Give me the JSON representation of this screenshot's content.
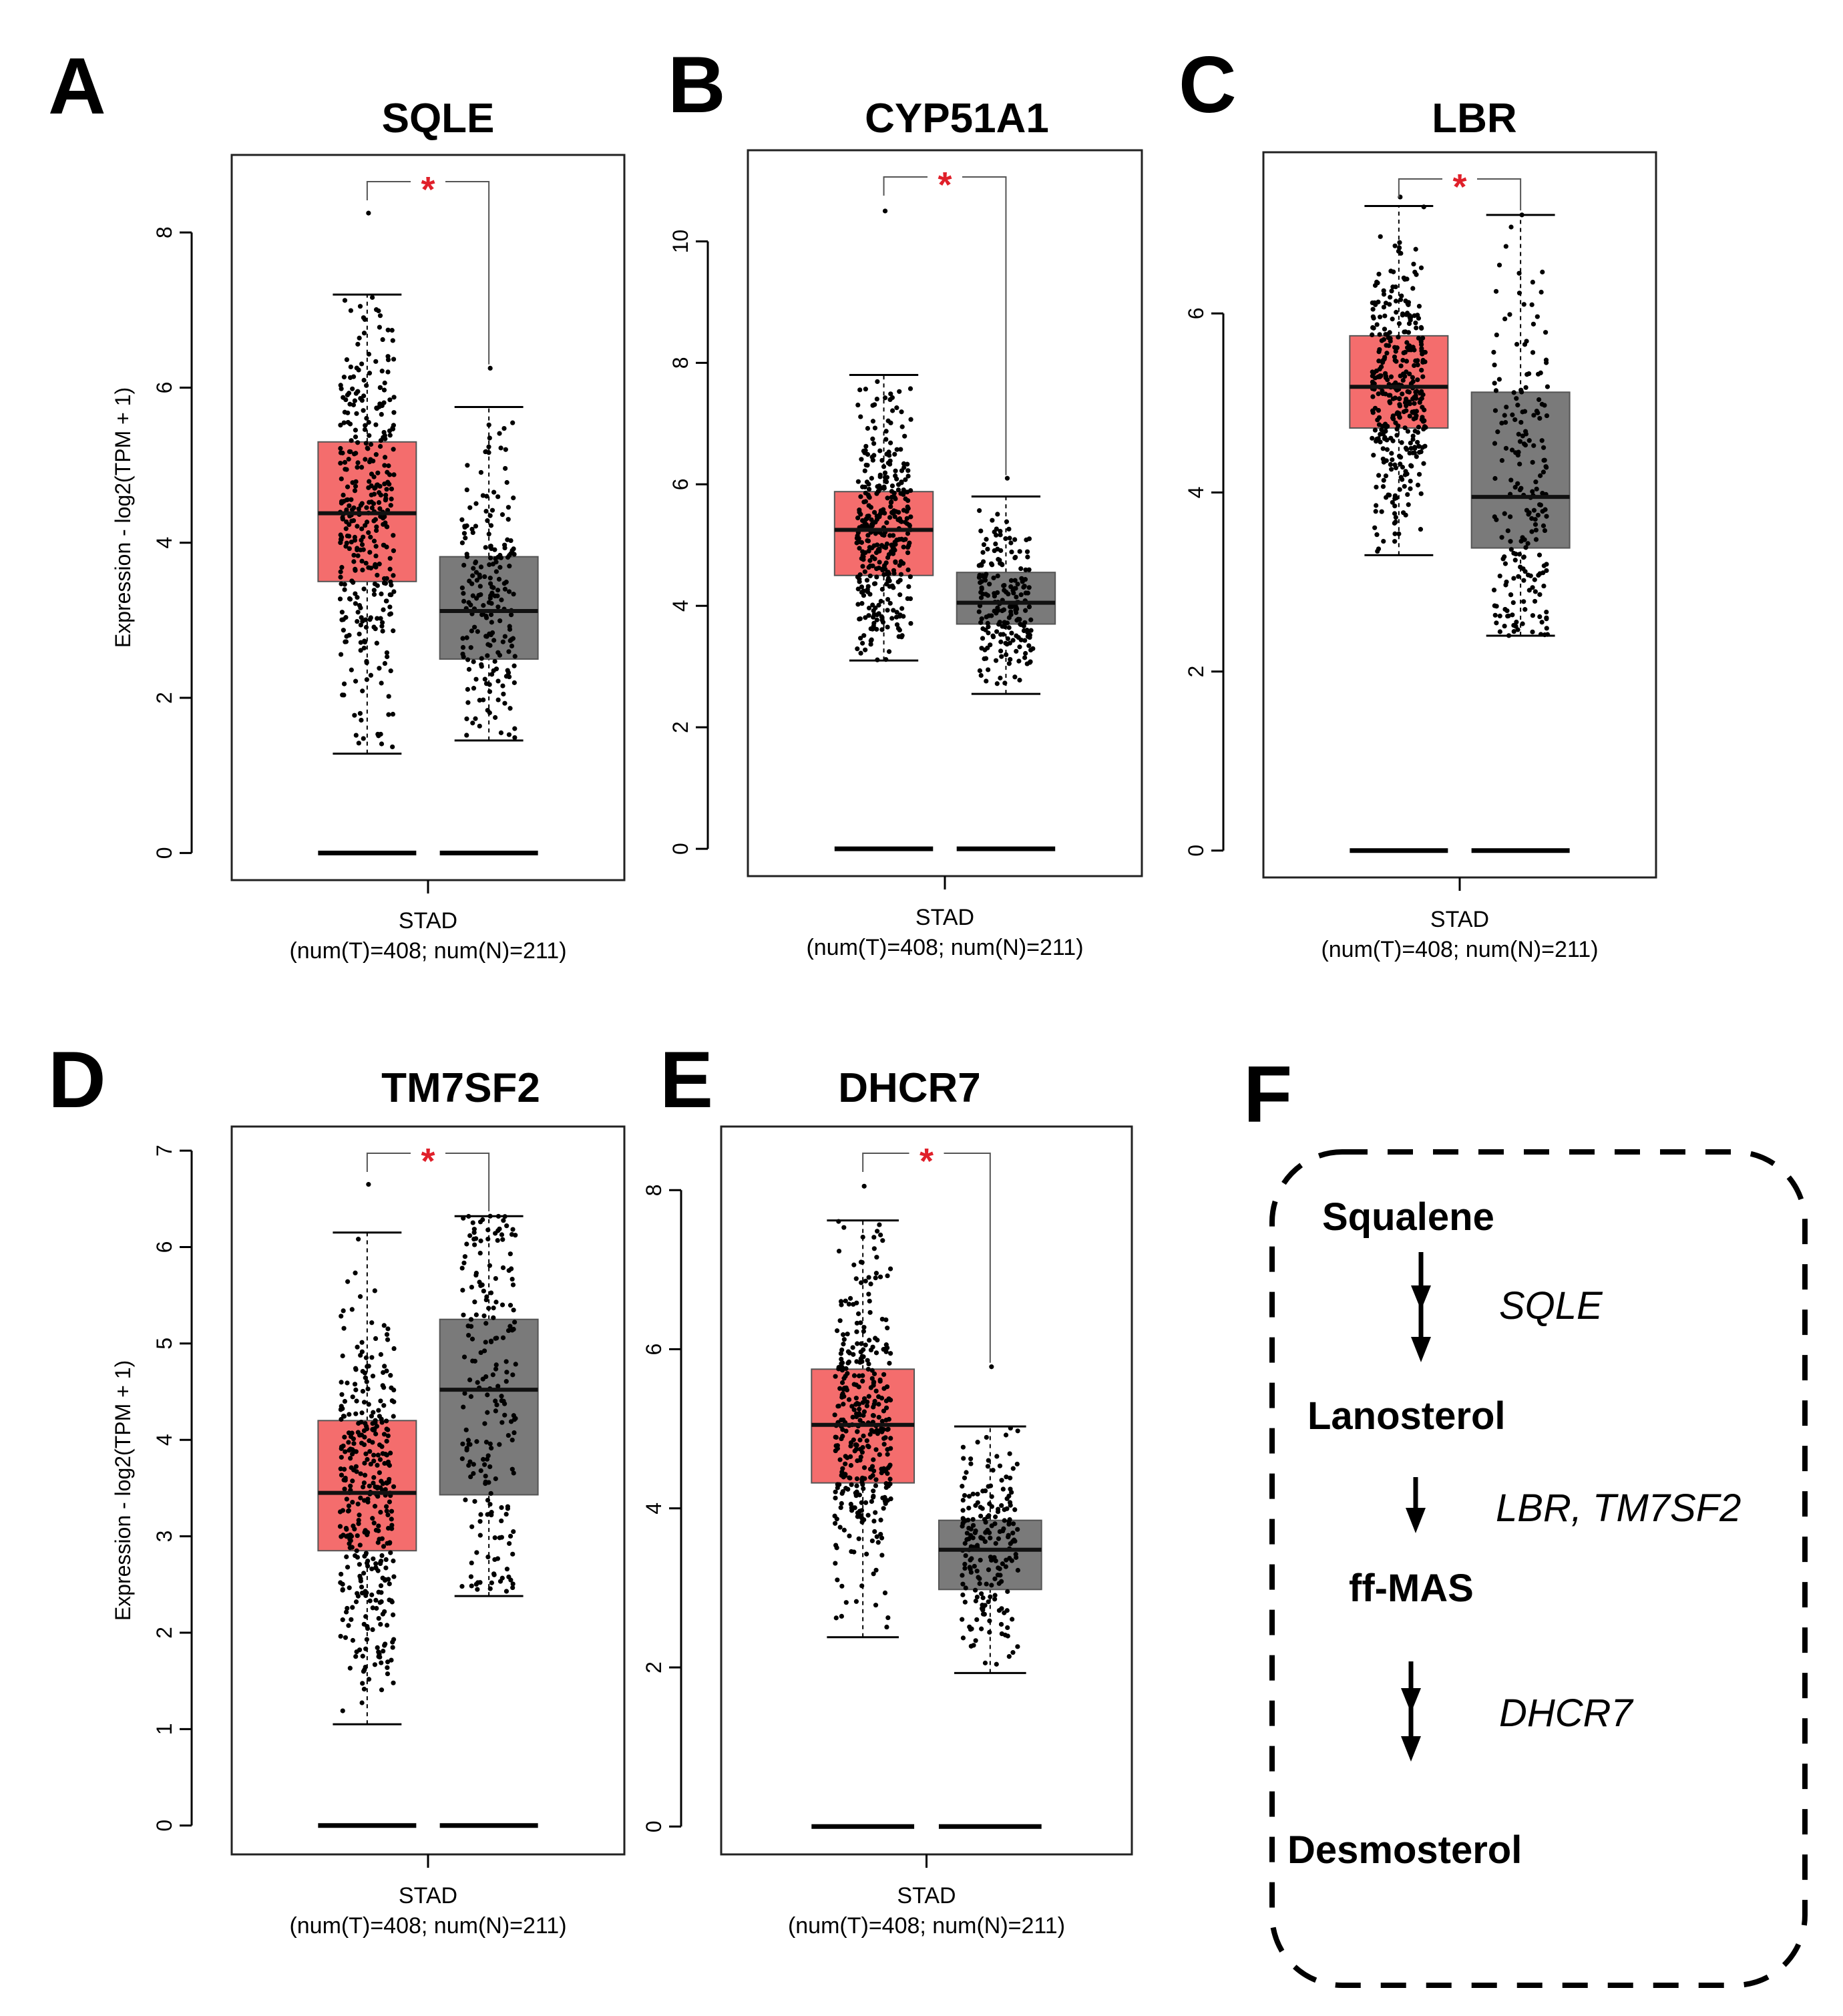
{
  "chart_data": [
    {
      "panel": "A",
      "type": "box",
      "title": "SQLE",
      "ylabel": "Expression - log2(TPM + 1)",
      "yticks": [
        0,
        2,
        4,
        6,
        8
      ],
      "ylim": [
        -0.35,
        9.0
      ],
      "xlabel": "STAD",
      "xlabel_sub": "(num(T)=408; num(N)=211)",
      "significance": "*",
      "colors": {
        "tumor": "#f46d6d",
        "normal": "#7a7a7a"
      },
      "series": [
        {
          "name": "Tumor",
          "n": 408,
          "q1": 3.5,
          "median": 4.38,
          "q3": 5.3,
          "whisker_low": 1.28,
          "whisker_high": 7.2,
          "max_point": 8.25,
          "zero_level": 0
        },
        {
          "name": "Normal",
          "n": 211,
          "q1": 2.5,
          "median": 3.12,
          "q3": 3.82,
          "whisker_low": 1.45,
          "whisker_high": 5.75,
          "max_point": 6.25,
          "zero_level": 0
        }
      ]
    },
    {
      "panel": "B",
      "type": "box",
      "title": "CYP51A1",
      "ylabel": "",
      "yticks": [
        0,
        2,
        4,
        6,
        8,
        10
      ],
      "ylim": [
        -0.45,
        11.5
      ],
      "xlabel": "STAD",
      "xlabel_sub": "(num(T)=408; num(N)=211)",
      "significance": "*",
      "colors": {
        "tumor": "#f46d6d",
        "normal": "#7a7a7a"
      },
      "series": [
        {
          "name": "Tumor",
          "n": 408,
          "q1": 4.5,
          "median": 5.25,
          "q3": 5.88,
          "whisker_low": 3.1,
          "whisker_high": 7.8,
          "max_point": 10.5,
          "zero_level": 0
        },
        {
          "name": "Normal",
          "n": 211,
          "q1": 3.7,
          "median": 4.05,
          "q3": 4.55,
          "whisker_low": 2.55,
          "whisker_high": 5.8,
          "max_point": 6.1,
          "zero_level": 0
        }
      ]
    },
    {
      "panel": "C",
      "type": "box",
      "title": "LBR",
      "ylabel": "",
      "yticks": [
        0,
        2,
        4,
        6
      ],
      "ylim": [
        -0.3,
        7.8
      ],
      "xlabel": "STAD",
      "xlabel_sub": "(num(T)=408; num(N)=211)",
      "significance": "*",
      "colors": {
        "tumor": "#f46d6d",
        "normal": "#7a7a7a"
      },
      "series": [
        {
          "name": "Tumor",
          "n": 408,
          "q1": 4.72,
          "median": 5.18,
          "q3": 5.75,
          "whisker_low": 3.3,
          "whisker_high": 7.2,
          "max_point": 7.3,
          "zero_level": 0
        },
        {
          "name": "Normal",
          "n": 211,
          "q1": 3.38,
          "median": 3.95,
          "q3": 5.12,
          "whisker_low": 2.4,
          "whisker_high": 7.1,
          "max_point": 7.1,
          "zero_level": 0
        }
      ]
    },
    {
      "panel": "D",
      "type": "box",
      "title": "TM7SF2",
      "ylabel": "Expression - log2(TPM + 1)",
      "yticks": [
        0,
        1,
        2,
        3,
        4,
        5,
        6,
        7
      ],
      "ylim": [
        -0.3,
        7.25
      ],
      "xlabel": "STAD",
      "xlabel_sub": "(num(T)=408; num(N)=211)",
      "significance": "*",
      "colors": {
        "tumor": "#f46d6d",
        "normal": "#7a7a7a"
      },
      "series": [
        {
          "name": "Tumor",
          "n": 408,
          "q1": 2.85,
          "median": 3.45,
          "q3": 4.2,
          "whisker_low": 1.05,
          "whisker_high": 6.15,
          "max_point": 6.65,
          "zero_level": 0
        },
        {
          "name": "Normal",
          "n": 211,
          "q1": 3.43,
          "median": 4.52,
          "q3": 5.25,
          "whisker_low": 2.38,
          "whisker_high": 6.32,
          "max_point": 6.32,
          "zero_level": 0
        }
      ]
    },
    {
      "panel": "E",
      "type": "box",
      "title": "DHCR7",
      "ylabel": "",
      "yticks": [
        0,
        2,
        4,
        6,
        8
      ],
      "ylim": [
        -0.35,
        8.8
      ],
      "xlabel": "STAD",
      "xlabel_sub": "(num(T)=408; num(N)=211)",
      "significance": "*",
      "colors": {
        "tumor": "#f46d6d",
        "normal": "#7a7a7a"
      },
      "series": [
        {
          "name": "Tumor",
          "n": 408,
          "q1": 4.32,
          "median": 5.05,
          "q3": 5.75,
          "whisker_low": 2.38,
          "whisker_high": 7.62,
          "max_point": 8.05,
          "zero_level": 0
        },
        {
          "name": "Normal",
          "n": 211,
          "q1": 2.98,
          "median": 3.48,
          "q3": 3.85,
          "whisker_low": 1.93,
          "whisker_high": 5.03,
          "max_point": 5.78,
          "zero_level": 0
        }
      ]
    }
  ],
  "panel_f": {
    "letter": "F",
    "nodes": [
      "Squalene",
      "Lanosterol",
      "ff-MAS",
      "Desmosterol"
    ],
    "enzymes": [
      "SQLE",
      "LBR, TM7SF2",
      "DHCR7"
    ]
  }
}
